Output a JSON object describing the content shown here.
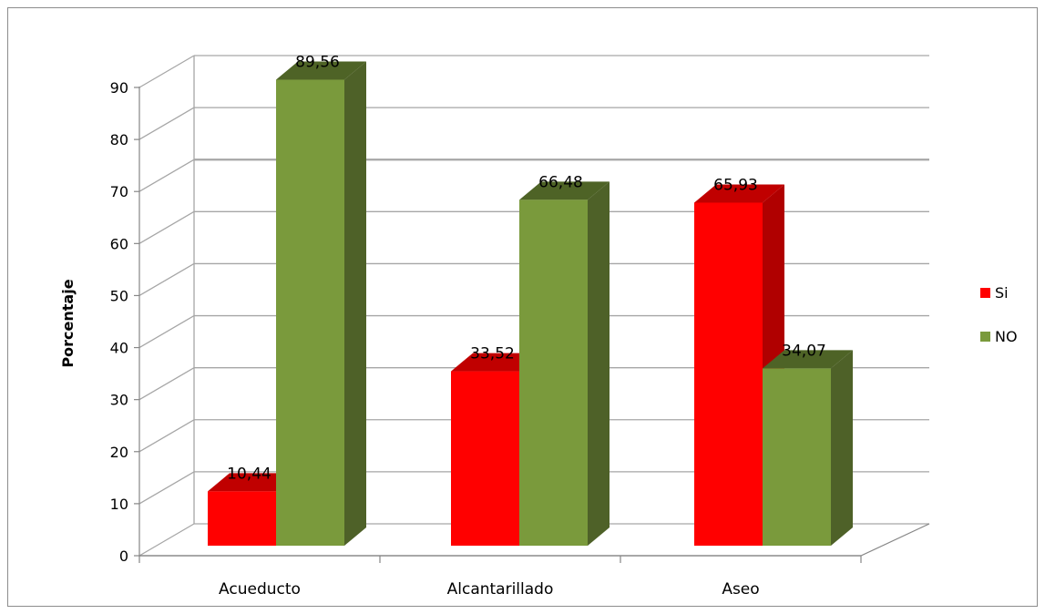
{
  "chart_data": {
    "type": "bar",
    "categories": [
      "Acueducto",
      "Alcantarillado",
      "Aseo"
    ],
    "series": [
      {
        "name": "Si",
        "values": [
          10.44,
          33.52,
          65.93
        ],
        "labels": [
          "10,44",
          "33,52",
          "65,93"
        ]
      },
      {
        "name": "NO",
        "values": [
          89.56,
          66.48,
          34.07
        ],
        "labels": [
          "89,56",
          "66,48",
          "34,07"
        ]
      }
    ],
    "xlabel": "",
    "ylabel": "Porcentaje",
    "ylim": [
      0,
      90
    ],
    "yticks": [
      0,
      10,
      20,
      30,
      40,
      50,
      60,
      70,
      80,
      90
    ],
    "grid": true,
    "legend": "right",
    "colors": {
      "Si": {
        "front": "#ff0000",
        "top": "#c00000",
        "side": "#b00000"
      },
      "NO": {
        "front": "#7a9a3c",
        "top": "#4e6326",
        "side": "#4e6128"
      },
      "grid": "#a6a6a6",
      "axis": "#868686"
    }
  }
}
